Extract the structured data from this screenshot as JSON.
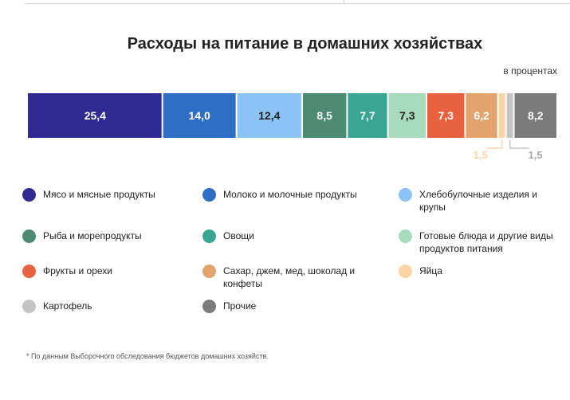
{
  "chart_data": {
    "type": "bar",
    "orientation": "horizontal-stacked",
    "title": "Расходы на питание в домашних хозяйствах",
    "unit_label": "в процентах",
    "total": 100,
    "segments": [
      {
        "name": "Мясо и мясные продукты",
        "value": 25.4,
        "label": "25,4",
        "color": "#2e2a91"
      },
      {
        "name": "Молоко и молочные продукты",
        "value": 14.0,
        "label": "14,0",
        "color": "#2f6ec5"
      },
      {
        "name": "Хлебобулочные изделия и крупы",
        "value": 12.4,
        "label": "12,4",
        "color": "#8cc3f7"
      },
      {
        "name": "Рыба и морепродукты",
        "value": 8.5,
        "label": "8,5",
        "color": "#4c8a72"
      },
      {
        "name": "Овощи",
        "value": 7.7,
        "label": "7,7",
        "color": "#3aa593"
      },
      {
        "name": "Готовые блюда и другие виды продуктов питания",
        "value": 7.3,
        "label": "7,3",
        "color": "#a6dcbd"
      },
      {
        "name": "Фрукты и орехи",
        "value": 7.3,
        "label": "7,3",
        "color": "#e8623f"
      },
      {
        "name": "Сахар, джем, мед, шоколад и конфеты",
        "value": 6.2,
        "label": "6,2",
        "color": "#e2a46c"
      },
      {
        "name": "Яйца",
        "value": 1.5,
        "label": "1,5",
        "color": "#fcd3a3"
      },
      {
        "name": "Картофель",
        "value": 1.5,
        "label": "1,5",
        "color": "#c4c4c4"
      },
      {
        "name": "Прочие",
        "value": 8.2,
        "label": "8,2",
        "color": "#7b7b7b"
      }
    ]
  },
  "legend": [
    {
      "label": "Мясо и мясные продукты",
      "color": "#2e2a91"
    },
    {
      "label": "Молоко и молочные продукты",
      "color": "#2f6ec5"
    },
    {
      "label": "Хлебобулочные изделия и крупы",
      "color": "#8cc3f7"
    },
    {
      "label": "Рыба и морепродукты",
      "color": "#4c8a72"
    },
    {
      "label": "Овощи",
      "color": "#3aa593"
    },
    {
      "label": "Готовые блюда и другие виды продуктов питания",
      "color": "#a6dcbd"
    },
    {
      "label": "Фрукты и орехи",
      "color": "#e8623f"
    },
    {
      "label": "Сахар, джем, мед, шоколад и конфеты",
      "color": "#e2a46c"
    },
    {
      "label": "Яйца",
      "color": "#fcd3a3"
    },
    {
      "label": "Картофель",
      "color": "#c4c4c4"
    },
    {
      "label": "Прочие",
      "color": "#7b7b7b"
    }
  ],
  "footnote": "* По данным Выборочного обследования бюджетов домашних  хозяйств."
}
